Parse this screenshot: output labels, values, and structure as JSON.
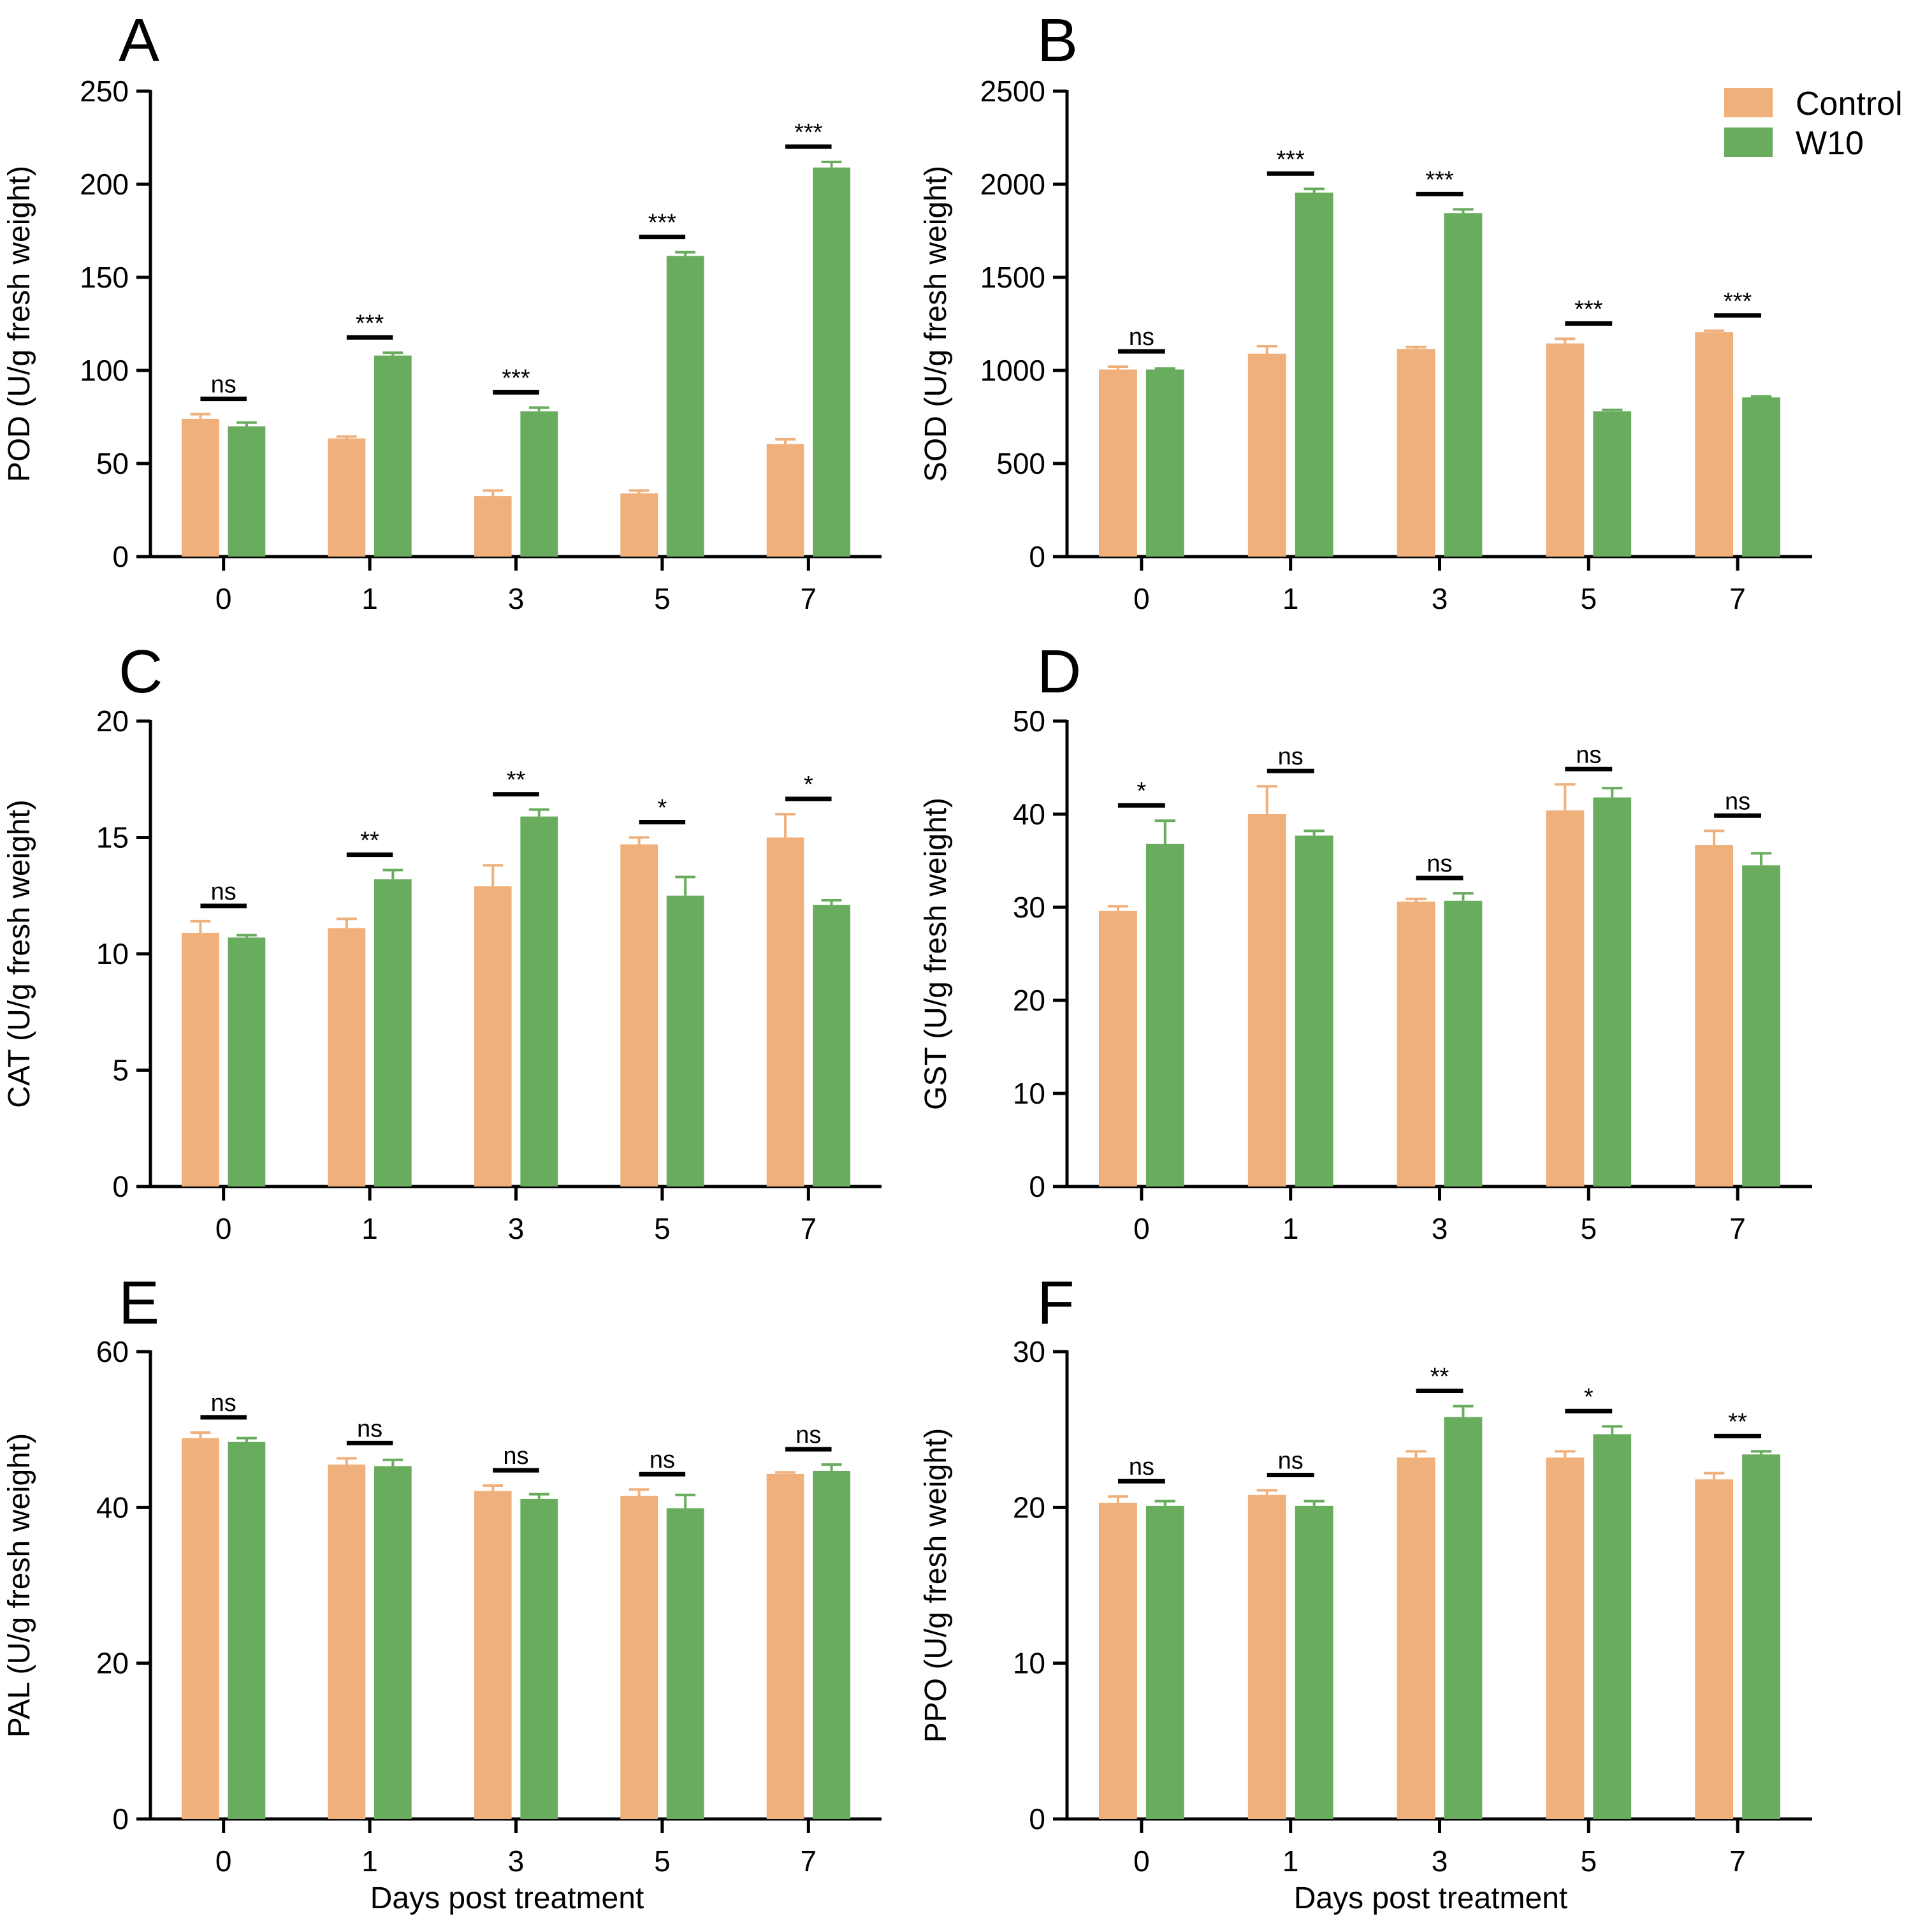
{
  "colors": {
    "control": "#EFB07B",
    "w10": "#69AC5E",
    "axis": "#000000"
  },
  "legend": {
    "control_label": "Control",
    "w10_label": "W10",
    "placement": "top-right of panel B"
  },
  "chart_data": [
    {
      "type": "bar",
      "panel": "A",
      "categories": [
        "0",
        "1",
        "3",
        "5",
        "7"
      ],
      "ylabel": "POD (U/g fresh weight)",
      "xlabel": "",
      "ylim": [
        0,
        250
      ],
      "yticks": [
        0,
        50,
        100,
        150,
        200,
        250
      ],
      "series": [
        {
          "name": "Control",
          "values": [
            74,
            63.5,
            32.5,
            34,
            60.5
          ],
          "errors": [
            2.5,
            1,
            3,
            1.5,
            2.5
          ]
        },
        {
          "name": "W10",
          "values": [
            70,
            108,
            78,
            161.5,
            209
          ],
          "errors": [
            2,
            1.5,
            2,
            2,
            3
          ]
        }
      ],
      "significance": [
        "ns",
        "***",
        "***",
        "***",
        "***"
      ]
    },
    {
      "type": "bar",
      "panel": "B",
      "categories": [
        "0",
        "1",
        "3",
        "5",
        "7"
      ],
      "ylabel": "SOD (U/g fresh weight)",
      "xlabel": "",
      "ylim": [
        0,
        2500
      ],
      "yticks": [
        0,
        500,
        1000,
        1500,
        2000,
        2500
      ],
      "series": [
        {
          "name": "Control",
          "values": [
            1005,
            1090,
            1115,
            1145,
            1205
          ],
          "errors": [
            15,
            40,
            10,
            25,
            8
          ]
        },
        {
          "name": "W10",
          "values": [
            1005,
            1955,
            1845,
            780,
            855
          ],
          "errors": [
            5,
            20,
            20,
            8,
            5
          ]
        }
      ],
      "significance": [
        "ns",
        "***",
        "***",
        "***",
        "***"
      ]
    },
    {
      "type": "bar",
      "panel": "C",
      "categories": [
        "0",
        "1",
        "3",
        "5",
        "7"
      ],
      "ylabel": "CAT (U/g fresh weight)",
      "xlabel": "",
      "ylim": [
        0,
        20
      ],
      "yticks": [
        0,
        5,
        10,
        15,
        20
      ],
      "series": [
        {
          "name": "Control",
          "values": [
            10.9,
            11.1,
            12.9,
            14.7,
            15.0
          ],
          "errors": [
            0.5,
            0.4,
            0.9,
            0.3,
            1.0
          ]
        },
        {
          "name": "W10",
          "values": [
            10.7,
            13.2,
            15.9,
            12.5,
            12.1
          ],
          "errors": [
            0.1,
            0.4,
            0.3,
            0.8,
            0.2
          ]
        }
      ],
      "significance": [
        "ns",
        "**",
        "**",
        "*",
        "*"
      ]
    },
    {
      "type": "bar",
      "panel": "D",
      "categories": [
        "0",
        "1",
        "3",
        "5",
        "7"
      ],
      "ylabel": "GST (U/g fresh weight)",
      "xlabel": "",
      "ylim": [
        0,
        50
      ],
      "yticks": [
        0,
        10,
        20,
        30,
        40,
        50
      ],
      "series": [
        {
          "name": "Control",
          "values": [
            29.6,
            40.0,
            30.6,
            40.4,
            36.7
          ],
          "errors": [
            0.5,
            3.0,
            0.3,
            2.8,
            1.5
          ]
        },
        {
          "name": "W10",
          "values": [
            36.8,
            37.7,
            30.7,
            41.8,
            34.5
          ],
          "errors": [
            2.5,
            0.5,
            0.8,
            1.0,
            1.3
          ]
        }
      ],
      "significance": [
        "*",
        "ns",
        "ns",
        "ns",
        "ns"
      ]
    },
    {
      "type": "bar",
      "panel": "E",
      "categories": [
        "0",
        "1",
        "3",
        "5",
        "7"
      ],
      "ylabel": "PAL (U/g fresh weight)",
      "xlabel": "Days post treatment",
      "ylim": [
        0,
        60
      ],
      "yticks": [
        0,
        20,
        40,
        60
      ],
      "series": [
        {
          "name": "Control",
          "values": [
            48.9,
            45.5,
            42.1,
            41.5,
            44.3
          ],
          "errors": [
            0.7,
            0.8,
            0.7,
            0.8,
            0.2
          ]
        },
        {
          "name": "W10",
          "values": [
            48.4,
            45.3,
            41.1,
            39.9,
            44.7
          ],
          "errors": [
            0.5,
            0.8,
            0.6,
            1.7,
            0.8
          ]
        }
      ],
      "significance": [
        "ns",
        "ns",
        "ns",
        "ns",
        "ns"
      ]
    },
    {
      "type": "bar",
      "panel": "F",
      "categories": [
        "0",
        "1",
        "3",
        "5",
        "7"
      ],
      "ylabel": "PPO (U/g fresh weight)",
      "xlabel": "Days post treatment",
      "ylim": [
        0,
        30
      ],
      "yticks": [
        0,
        10,
        20,
        30
      ],
      "series": [
        {
          "name": "Control",
          "values": [
            20.3,
            20.8,
            23.2,
            23.2,
            21.8
          ],
          "errors": [
            0.4,
            0.3,
            0.4,
            0.4,
            0.4
          ]
        },
        {
          "name": "W10",
          "values": [
            20.1,
            20.1,
            25.8,
            24.7,
            23.4
          ],
          "errors": [
            0.3,
            0.3,
            0.7,
            0.5,
            0.2
          ]
        }
      ],
      "significance": [
        "ns",
        "ns",
        "**",
        "*",
        "**"
      ]
    }
  ]
}
